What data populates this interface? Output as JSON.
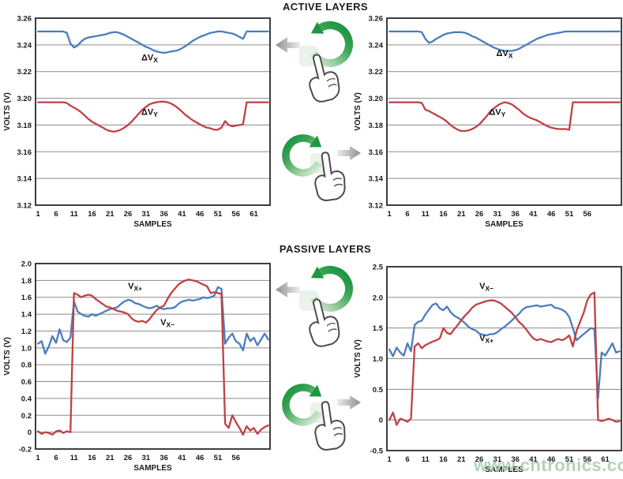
{
  "figure": {
    "sections": [
      {
        "title": "ACTIVE LAYERS"
      },
      {
        "title": "PASSIVE LAYERS"
      }
    ],
    "watermark": "www.cntronics.com"
  },
  "icons": {
    "rotate_ccw_icon": "green circular arrow rotating counterclockwise",
    "rotate_cw_icon": "green circular arrow rotating clockwise",
    "arrow_left_icon": "gray arrow pointing left",
    "arrow_right_icon": "gray arrow pointing right",
    "pointing_hand_icon": "hand with index finger touching the rotation ring"
  },
  "colors": {
    "series_blue": "#4a7dbd",
    "series_red": "#bf4146",
    "grid": "#8a8a8a",
    "frame": "#2a2a2a",
    "text": "#1a1a1a",
    "green_dark": "#1e9643",
    "green_light": "#d8ecda",
    "gray_arrow_dark": "#8f9091",
    "gray_arrow_light": "#ececec",
    "watermark": "#a9cfad"
  },
  "chart_data": [
    {
      "id": "active-left",
      "type": "line",
      "section": "ACTIVE LAYERS",
      "xlabel": "SAMPLES",
      "ylabel": "VOLTS (V)",
      "xlim": [
        0.3,
        65.5
      ],
      "ylim": [
        3.12,
        3.26
      ],
      "grid": true,
      "xtick_values": [
        1,
        6,
        11,
        16,
        21,
        26,
        31,
        36,
        41,
        46,
        51,
        56,
        61
      ],
      "xtick_labels": [
        "1",
        "6",
        "11",
        "16",
        "21",
        "26",
        "31",
        "36",
        "41",
        "46",
        "51",
        "56",
        "61"
      ],
      "ytick_values": [
        3.26,
        3.24,
        3.22,
        3.2,
        3.18,
        3.16,
        3.14,
        3.12
      ],
      "ytick_labels": [
        "3.26",
        "3.24",
        "3.22",
        "3.20",
        "3.18",
        "3.16",
        "3.14",
        "3.12"
      ],
      "series": [
        {
          "name": "ΔVX",
          "label_main": "ΔV",
          "label_sub": "X",
          "color": "#4a7dbd",
          "label_x": 32,
          "label_y": 3.2285,
          "x_start": 1,
          "values": [
            3.25,
            3.25,
            3.25,
            3.25,
            3.25,
            3.25,
            3.25,
            3.25,
            3.249,
            3.241,
            3.238,
            3.2395,
            3.2425,
            3.2445,
            3.2455,
            3.246,
            3.2465,
            3.247,
            3.2475,
            3.248,
            3.249,
            3.2495,
            3.2495,
            3.2485,
            3.2475,
            3.246,
            3.2445,
            3.243,
            3.2415,
            3.24,
            3.2385,
            3.2375,
            3.236,
            3.235,
            3.2345,
            3.234,
            3.2345,
            3.235,
            3.2355,
            3.236,
            3.2375,
            3.239,
            3.241,
            3.243,
            3.2445,
            3.246,
            3.247,
            3.248,
            3.249,
            3.2495,
            3.25,
            3.25,
            3.2495,
            3.249,
            3.2485,
            3.2475,
            3.246,
            3.2445,
            3.25,
            3.25,
            3.25,
            3.25,
            3.25,
            3.25,
            3.25
          ]
        },
        {
          "name": "ΔVY",
          "label_main": "ΔV",
          "label_sub": "Y",
          "color": "#bf4146",
          "label_x": 32,
          "label_y": 3.1875,
          "x_start": 1,
          "values": [
            3.197,
            3.197,
            3.197,
            3.197,
            3.197,
            3.197,
            3.197,
            3.197,
            3.1965,
            3.1945,
            3.193,
            3.1915,
            3.1895,
            3.187,
            3.1845,
            3.1825,
            3.181,
            3.1795,
            3.178,
            3.1765,
            3.1755,
            3.175,
            3.1755,
            3.1765,
            3.178,
            3.18,
            3.1825,
            3.1855,
            3.1885,
            3.1915,
            3.1935,
            3.1955,
            3.1965,
            3.197,
            3.1975,
            3.1975,
            3.197,
            3.196,
            3.1945,
            3.1925,
            3.19,
            3.1875,
            3.1855,
            3.1835,
            3.182,
            3.1805,
            3.179,
            3.178,
            3.1775,
            3.1765,
            3.1765,
            3.178,
            3.183,
            3.18,
            3.179,
            3.1795,
            3.18,
            3.1805,
            3.197,
            3.197,
            3.197,
            3.197,
            3.197,
            3.197,
            3.197
          ]
        }
      ]
    },
    {
      "id": "active-right",
      "type": "line",
      "section": "ACTIVE LAYERS",
      "xlabel": "SAMPLES",
      "ylabel": "VOLTS (V)",
      "xlim": [
        0.3,
        65.5
      ],
      "ylim": [
        3.12,
        3.26
      ],
      "grid": true,
      "xtick_values": [
        1,
        6,
        11,
        16,
        21,
        26,
        31,
        36,
        41,
        46,
        51,
        56
      ],
      "xtick_labels": [
        "1",
        "6",
        "11",
        "16",
        "21",
        "26",
        "31",
        "36",
        "41",
        "46",
        "51",
        "56"
      ],
      "ytick_values": [
        3.26,
        3.24,
        3.22,
        3.2,
        3.18,
        3.16,
        3.14,
        3.12
      ],
      "ytick_labels": [
        "3.26",
        "3.24",
        "3.22",
        "3.20",
        "3.18",
        "3.16",
        "3.14",
        "3.12"
      ],
      "series": [
        {
          "name": "ΔVX",
          "label_main": "ΔV",
          "label_sub": "X",
          "color": "#4a7dbd",
          "label_x": 33,
          "label_y": 3.2315,
          "x_start": 1,
          "values": [
            3.25,
            3.25,
            3.25,
            3.25,
            3.25,
            3.25,
            3.25,
            3.25,
            3.25,
            3.2495,
            3.2445,
            3.2415,
            3.2425,
            3.2445,
            3.246,
            3.2475,
            3.2485,
            3.249,
            3.2495,
            3.2495,
            3.2495,
            3.249,
            3.248,
            3.2465,
            3.2455,
            3.244,
            3.2425,
            3.241,
            3.2395,
            3.238,
            3.237,
            3.236,
            3.2355,
            3.2355,
            3.2355,
            3.236,
            3.237,
            3.2385,
            3.24,
            3.2415,
            3.243,
            3.2445,
            3.2455,
            3.2465,
            3.2475,
            3.248,
            3.2485,
            3.249,
            3.2495,
            3.25,
            3.25,
            3.25,
            3.25,
            3.25,
            3.25,
            3.25,
            3.25,
            3.25,
            3.25,
            3.25,
            3.25,
            3.25,
            3.25,
            3.25,
            3.25
          ]
        },
        {
          "name": "ΔVY",
          "label_main": "ΔV",
          "label_sub": "Y",
          "color": "#bf4146",
          "label_x": 31,
          "label_y": 3.1875,
          "x_start": 1,
          "values": [
            3.197,
            3.197,
            3.197,
            3.197,
            3.197,
            3.197,
            3.197,
            3.197,
            3.197,
            3.1965,
            3.1915,
            3.1905,
            3.189,
            3.1875,
            3.186,
            3.1845,
            3.1825,
            3.18,
            3.178,
            3.1765,
            3.1755,
            3.1755,
            3.176,
            3.177,
            3.1785,
            3.1805,
            3.1835,
            3.1865,
            3.19,
            3.1925,
            3.1945,
            3.196,
            3.197,
            3.1965,
            3.1955,
            3.1935,
            3.1915,
            3.189,
            3.187,
            3.1855,
            3.1845,
            3.1835,
            3.182,
            3.1805,
            3.179,
            3.178,
            3.1775,
            3.177,
            3.177,
            3.177,
            3.1765,
            3.197,
            3.197,
            3.197,
            3.197,
            3.197,
            3.197,
            3.197,
            3.197,
            3.197,
            3.197,
            3.197,
            3.197,
            3.197,
            3.197
          ]
        }
      ]
    },
    {
      "id": "passive-left",
      "type": "line",
      "section": "PASSIVE LAYERS",
      "xlabel": "SAMPLES",
      "ylabel": "VOLTS (V)",
      "xlim": [
        0.3,
        65.5
      ],
      "ylim": [
        -0.2,
        2.0
      ],
      "grid": true,
      "xtick_values": [
        1,
        6,
        11,
        16,
        21,
        26,
        31,
        36,
        41,
        46,
        51,
        56
      ],
      "xtick_labels": [
        "1",
        "6",
        "11",
        "16",
        "21",
        "26",
        "31",
        "36",
        "41",
        "46",
        "51",
        "56"
      ],
      "ytick_values": [
        2.0,
        1.8,
        1.6,
        1.4,
        1.2,
        1.0,
        0.8,
        0.6,
        0.4,
        0.2,
        0,
        -0.2
      ],
      "ytick_labels": [
        "2.0",
        "1.8",
        "1.6",
        "1.4",
        "1.2",
        "1.0",
        "0.8",
        "0.6",
        "0.4",
        "0.2",
        "0",
        "-0.2"
      ],
      "series": [
        {
          "name": "VX+",
          "label_main": "V",
          "label_sub": "X+",
          "color": "#4a7dbd",
          "label_x": 28,
          "label_y": 1.7,
          "x_start": 1,
          "values": [
            1.05,
            1.08,
            0.93,
            1.02,
            1.14,
            1.06,
            1.22,
            1.09,
            1.07,
            1.12,
            1.55,
            1.43,
            1.4,
            1.38,
            1.37,
            1.4,
            1.38,
            1.4,
            1.42,
            1.44,
            1.46,
            1.47,
            1.48,
            1.52,
            1.55,
            1.57,
            1.56,
            1.53,
            1.52,
            1.5,
            1.48,
            1.47,
            1.48,
            1.5,
            1.47,
            1.46,
            1.47,
            1.47,
            1.48,
            1.52,
            1.55,
            1.56,
            1.57,
            1.56,
            1.57,
            1.58,
            1.6,
            1.59,
            1.6,
            1.62,
            1.72,
            1.7,
            1.05,
            1.12,
            1.17,
            1.08,
            1.05,
            0.97,
            1.17,
            1.08,
            1.12,
            1.03,
            1.1,
            1.17,
            1.1
          ]
        },
        {
          "name": "VX−",
          "label_main": "V",
          "label_sub": "X−",
          "color": "#bf4146",
          "label_x": 37,
          "label_y": 1.27,
          "x_start": 1,
          "values": [
            0.01,
            -0.02,
            0,
            -0.01,
            -0.03,
            0.01,
            0.02,
            -0.01,
            0.01,
            0,
            1.65,
            1.63,
            1.6,
            1.62,
            1.63,
            1.62,
            1.58,
            1.55,
            1.52,
            1.49,
            1.48,
            1.46,
            1.44,
            1.43,
            1.42,
            1.4,
            1.35,
            1.32,
            1.31,
            1.32,
            1.3,
            1.34,
            1.4,
            1.45,
            1.48,
            1.5,
            1.58,
            1.65,
            1.7,
            1.75,
            1.78,
            1.8,
            1.81,
            1.8,
            1.79,
            1.77,
            1.75,
            1.73,
            1.65,
            1.66,
            1.65,
            1.64,
            0.1,
            0.05,
            0.2,
            0.12,
            0.05,
            -0.03,
            0.07,
            0.02,
            0.05,
            -0.02,
            0.03,
            0.06,
            0.08
          ]
        }
      ]
    },
    {
      "id": "passive-right",
      "type": "line",
      "section": "PASSIVE LAYERS",
      "xlabel": "SAMPLES",
      "ylabel": "VOLTS (V)",
      "xlim": [
        0.3,
        65.5
      ],
      "ylim": [
        -0.5,
        2.5
      ],
      "grid": true,
      "xtick_values": [
        1,
        6,
        11,
        16,
        21,
        26,
        31,
        36,
        41,
        46,
        51,
        56,
        61
      ],
      "xtick_labels": [
        "1",
        "6",
        "11",
        "16",
        "21",
        "26",
        "31",
        "36",
        "41",
        "46",
        "51",
        "56",
        "61"
      ],
      "ytick_values": [
        2.5,
        2.0,
        1.5,
        1.0,
        0.5,
        0,
        -0.5
      ],
      "ytick_labels": [
        "2.5",
        "2.0",
        "1.5",
        "1.0",
        "0.5",
        "0",
        "-0.5"
      ],
      "series": [
        {
          "name": "VX+",
          "label_main": "V",
          "label_sub": "X+",
          "color": "#4a7dbd",
          "label_x": 28,
          "label_y": 1.29,
          "x_start": 1,
          "values": [
            1.15,
            1.04,
            1.18,
            1.1,
            1.05,
            1.25,
            1.12,
            1.55,
            1.6,
            1.62,
            1.72,
            1.8,
            1.88,
            1.9,
            1.82,
            1.79,
            1.85,
            1.76,
            1.7,
            1.67,
            1.63,
            1.58,
            1.52,
            1.48,
            1.46,
            1.41,
            1.39,
            1.38,
            1.4,
            1.4,
            1.43,
            1.48,
            1.52,
            1.57,
            1.62,
            1.68,
            1.73,
            1.8,
            1.84,
            1.85,
            1.86,
            1.87,
            1.85,
            1.86,
            1.87,
            1.88,
            1.83,
            1.82,
            1.8,
            1.76,
            1.68,
            1.5,
            1.3,
            1.35,
            1.4,
            1.45,
            1.5,
            1.48,
            0.35,
            1.1,
            1.05,
            1.15,
            1.25,
            1.1,
            1.12
          ]
        },
        {
          "name": "VX−",
          "label_main": "V",
          "label_sub": "X−",
          "color": "#bf4146",
          "label_x": 28,
          "label_y": 2.14,
          "x_start": 1,
          "values": [
            0,
            0.12,
            -0.08,
            0.02,
            0,
            -0.03,
            0.02,
            1.2,
            1.25,
            1.17,
            1.22,
            1.25,
            1.28,
            1.3,
            1.33,
            1.5,
            1.42,
            1.4,
            1.48,
            1.55,
            1.63,
            1.7,
            1.76,
            1.83,
            1.88,
            1.9,
            1.92,
            1.94,
            1.95,
            1.95,
            1.93,
            1.9,
            1.85,
            1.8,
            1.75,
            1.68,
            1.6,
            1.55,
            1.48,
            1.4,
            1.33,
            1.3,
            1.32,
            1.3,
            1.28,
            1.27,
            1.3,
            1.32,
            1.3,
            1.33,
            1.38,
            1.2,
            1.45,
            1.6,
            1.75,
            1.95,
            2.05,
            2.08,
            0,
            -0.02,
            0,
            0.02,
            0,
            -0.03,
            -0.02
          ]
        }
      ]
    }
  ]
}
